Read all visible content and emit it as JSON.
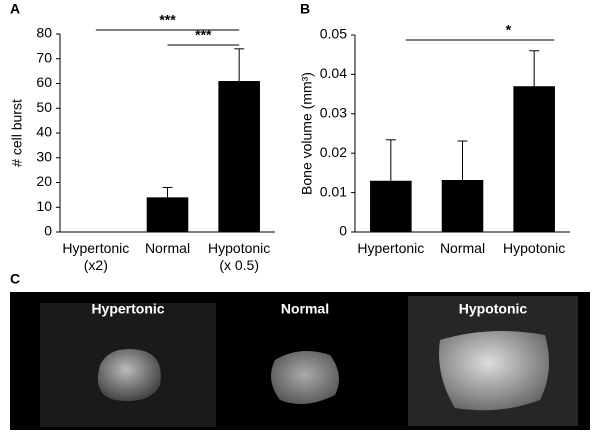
{
  "chart_data": [
    {
      "type": "bar",
      "panel": "A",
      "y_label": "# cell burst",
      "categories": [
        "Hypertonic\n(x2)",
        "Normal",
        "Hypotonic\n(x 0.5)"
      ],
      "values": [
        0,
        14,
        61
      ],
      "errors": [
        0,
        4,
        13
      ],
      "color": "#000000",
      "ylim": [
        0,
        80
      ],
      "yticks": [
        0,
        10,
        20,
        30,
        40,
        50,
        60,
        70,
        80
      ],
      "annotations": [
        "***",
        "***"
      ]
    },
    {
      "type": "bar",
      "panel": "B",
      "y_label": "Bone volume (mm³)",
      "categories": [
        "Hypertonic",
        "Normal",
        "Hypotonic"
      ],
      "values": [
        0.013,
        0.0132,
        0.037
      ],
      "errors": [
        0.0104,
        0.0099,
        0.009
      ],
      "color": "#000000",
      "ylim": [
        0,
        0.05
      ],
      "yticks": [
        0,
        0.01,
        0.02,
        0.03,
        0.04,
        0.05
      ],
      "annotations": [
        "*"
      ]
    }
  ],
  "panel_c": {
    "label": "C",
    "images": [
      "Hypertonic",
      "Normal",
      "Hypotonic"
    ]
  }
}
